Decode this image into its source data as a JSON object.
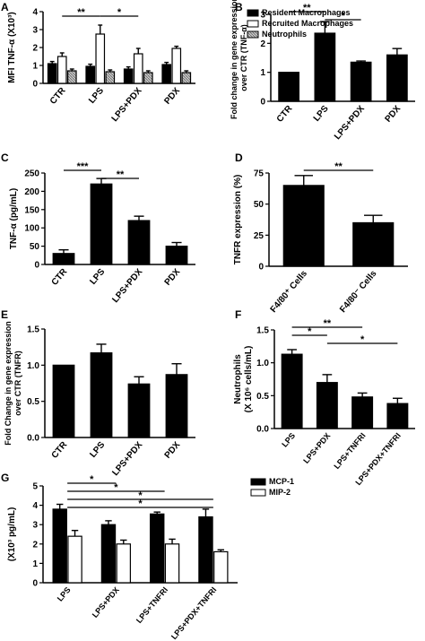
{
  "chart_data": [
    {
      "panel": "A",
      "type": "bar",
      "ylabel": "MFI TNF-α (X10³)",
      "yticks": [
        "0",
        "1",
        "2",
        "3",
        "4"
      ],
      "ylim": [
        0,
        4
      ],
      "categories": [
        "CTR",
        "LPS",
        "LPS+PDX",
        "PDX"
      ],
      "series": [
        {
          "name": "Resident Macrophages",
          "values": [
            1.1,
            0.95,
            0.8,
            1.05
          ],
          "errors": [
            0.12,
            0.12,
            0.12,
            0.12
          ]
        },
        {
          "name": "Recruited Macrophages",
          "values": [
            1.5,
            2.75,
            1.65,
            1.95
          ],
          "errors": [
            0.2,
            0.5,
            0.3,
            0.12
          ]
        },
        {
          "name": "Neutrophils",
          "values": [
            0.7,
            0.65,
            0.6,
            0.6
          ],
          "errors": [
            0.1,
            0.1,
            0.1,
            0.1
          ]
        }
      ],
      "annotations": [
        "**",
        "*"
      ],
      "legend_position": "top-right"
    },
    {
      "panel": "B",
      "type": "bar",
      "ylabel": "Fold change in gene expression over CTR (TNF-α)",
      "yticks": [
        "0",
        "1",
        "2",
        "3"
      ],
      "ylim": [
        0,
        3
      ],
      "categories": [
        "CTR",
        "LPS",
        "LPS+PDX",
        "PDX"
      ],
      "values": [
        1.0,
        2.35,
        1.35,
        1.6
      ],
      "errors": [
        0.0,
        0.4,
        0.04,
        0.22
      ],
      "annotations": [
        "**",
        "*"
      ]
    },
    {
      "panel": "C",
      "type": "bar",
      "ylabel": "TNF-α (pg/mL)",
      "yticks": [
        "0",
        "50",
        "100",
        "150",
        "200",
        "250"
      ],
      "ylim": [
        0,
        250
      ],
      "categories": [
        "CTR",
        "LPS",
        "LPS+PDX",
        "PDX"
      ],
      "values": [
        30,
        220,
        120,
        50
      ],
      "errors": [
        10,
        15,
        12,
        10
      ],
      "annotations": [
        "***",
        "**"
      ]
    },
    {
      "panel": "D",
      "type": "bar",
      "ylabel": "TNFR expression (%)",
      "yticks": [
        "0",
        "25",
        "50",
        "75"
      ],
      "ylim": [
        0,
        75
      ],
      "categories": [
        "F4/80⁺ Cells",
        "F4/80⁻ Cells"
      ],
      "values": [
        65,
        35
      ],
      "errors": [
        8,
        6
      ],
      "annotations": [
        "**"
      ]
    },
    {
      "panel": "E",
      "type": "bar",
      "ylabel": "Fold Change in gene expression over CTR (TNFR)",
      "yticks": [
        "0.0",
        "0.5",
        "1.0",
        "1.5"
      ],
      "ylim": [
        0,
        1.5
      ],
      "categories": [
        "CTR",
        "LPS",
        "LPS+PDX",
        "PDX"
      ],
      "values": [
        1.0,
        1.17,
        0.74,
        0.87
      ],
      "errors": [
        0.0,
        0.12,
        0.1,
        0.15
      ]
    },
    {
      "panel": "F",
      "type": "bar",
      "ylabel": "Neutrophils (X 10⁶ cells/mL)",
      "yticks": [
        "0.0",
        "0.5",
        "1.0",
        "1.5"
      ],
      "ylim": [
        0,
        1.5
      ],
      "categories": [
        "LPS",
        "LPS+PDX",
        "LPS+TNFRI",
        "LPS+PDX+TNFRI"
      ],
      "values": [
        1.13,
        0.7,
        0.48,
        0.38
      ],
      "errors": [
        0.07,
        0.12,
        0.06,
        0.08
      ],
      "annotations": [
        "**",
        "*",
        "*"
      ]
    },
    {
      "panel": "G",
      "type": "bar",
      "ylabel": "(X10³ pg/mL)",
      "yticks": [
        "0",
        "1",
        "2",
        "3",
        "4",
        "5"
      ],
      "ylim": [
        0,
        5
      ],
      "categories": [
        "LPS",
        "LPS+PDX",
        "LPS+TNFRI",
        "LPS+PDX+TNFRI"
      ],
      "series": [
        {
          "name": "MCP-1",
          "values": [
            3.8,
            3.0,
            3.55,
            3.4
          ],
          "errors": [
            0.25,
            0.2,
            0.1,
            0.4
          ]
        },
        {
          "name": "MIP-2",
          "values": [
            2.4,
            2.0,
            2.0,
            1.6
          ],
          "errors": [
            0.3,
            0.2,
            0.25,
            0.1
          ]
        }
      ],
      "annotations": [
        "*",
        "*",
        "*",
        "*"
      ],
      "legend_position": "top-right"
    }
  ],
  "colors": {
    "bar_black": "#000000",
    "bar_white": "#ffffff",
    "bar_gray_hatch": "#a8a8a8"
  }
}
